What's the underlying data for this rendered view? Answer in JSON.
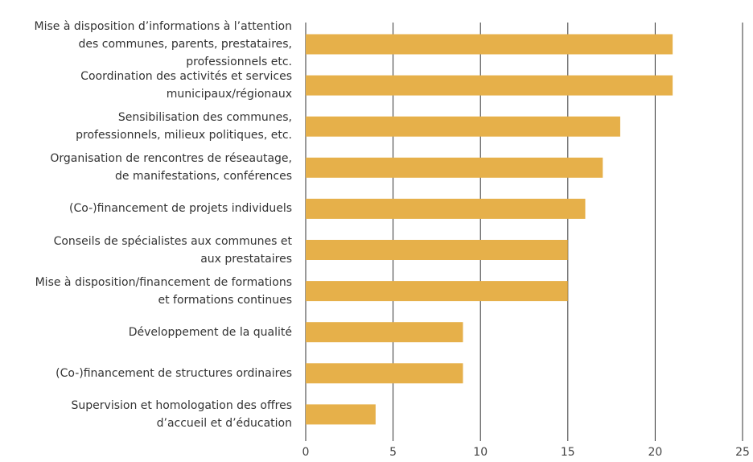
{
  "chart_data": {
    "type": "bar",
    "orientation": "horizontal",
    "categories": [
      "Mise à disposition d’informations à l’attention\ndes communes, parents, prestataires,\nprofessionnels etc.",
      "Coordination des activités et services\nmunicipaux/régionaux",
      "Sensibilisation des communes,\nprofessionnels, milieux politiques, etc.",
      "Organisation de rencontres de réseautage,\nde manifestations, conférences",
      "(Co-)financement de projets individuels",
      "Conseils de spécialistes aux communes et\naux prestataires",
      "Mise à disposition/financement de formations\net formations continues",
      "Développement de la qualité",
      "(Co-)financement de structures ordinaires",
      "Supervision et homologation des offres\nd’accueil et d’éducation"
    ],
    "values": [
      21,
      21,
      18,
      17,
      16,
      15,
      15,
      9,
      9,
      4
    ],
    "color": "#e6b04a",
    "xlim": [
      0,
      25
    ],
    "xticks": [
      0,
      5,
      10,
      15,
      20,
      25
    ],
    "grid": true
  }
}
